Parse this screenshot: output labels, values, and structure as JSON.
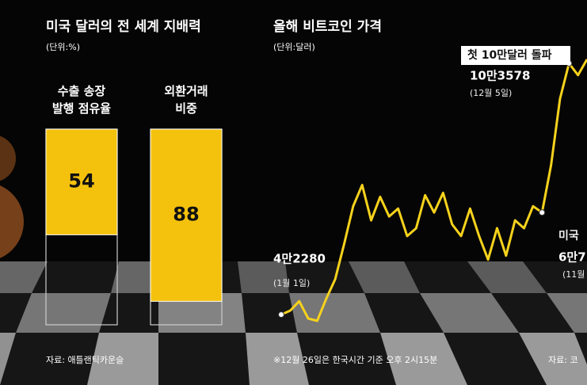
{
  "chart_data": [
    {
      "type": "bar",
      "title": "미국 달러의 전 세계 지배력",
      "subtitle": "(단위:%)",
      "categories": [
        "수출 송장\n발행 점유율",
        "외환거래\n비중"
      ],
      "values": [
        54,
        88
      ],
      "color": "#f4c20d",
      "ylim": [
        0,
        100
      ],
      "source": "자료: 애틀랜틱카운슬"
    },
    {
      "type": "line",
      "title": "올해 비트코인 가격",
      "subtitle": "(단위:달러)",
      "series": [
        {
          "name": "비트코인",
          "color": "#f6d21c",
          "values": [
            42280,
            43240,
            45540,
            41320,
            40750,
            46110,
            50900,
            59520,
            68720,
            73890,
            65270,
            71000,
            66220,
            68140,
            61440,
            63350,
            71400,
            67180,
            71970,
            64310,
            61440,
            68140,
            61440,
            55690,
            63350,
            56650,
            65270,
            63350,
            68720,
            67180,
            78680,
            94960,
            103578,
            100710,
            104540
          ],
          "value_labels": [
            "4만2280",
            null,
            null,
            null,
            null,
            null,
            null,
            null,
            null,
            null,
            null,
            null,
            null,
            null,
            null,
            null,
            null,
            null,
            null,
            null,
            null,
            null,
            null,
            null,
            null,
            null,
            null,
            null,
            null,
            "6만7",
            null,
            null,
            "10만3578",
            null,
            null
          ]
        }
      ],
      "annotations": [
        "(1월 1일)",
        "첫 10만달러 돌파",
        "(12월 5일)",
        "미국",
        "(11월"
      ],
      "footnote": "※12월 26일은 한국시간 기준 오후 2시15분",
      "source": "자료: 코"
    }
  ]
}
